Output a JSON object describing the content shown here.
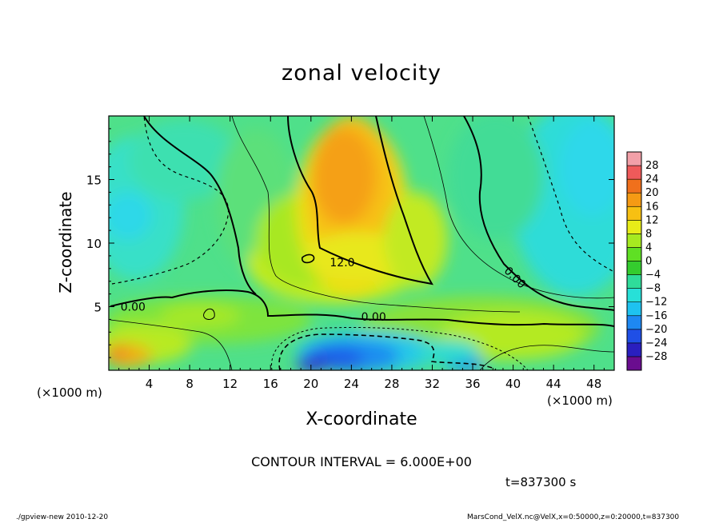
{
  "title": "zonal velocity",
  "xlabel": "X-coordinate",
  "ylabel": "Z-coordinate",
  "xunit_left": "(×1000 m)",
  "xunit_right": "(×1000 m)",
  "contour_interval": "CONTOUR INTERVAL = 6.000E+00",
  "time_label": "t=837300 s",
  "footer_left": "./gpview-new  2010-12-20",
  "footer_right": "MarsCond_VelX.nc@VelX,x=0:50000,z=0:20000,t=837300",
  "chart_data": {
    "type": "heatmap",
    "title": "zonal velocity",
    "xlabel": "X-coordinate",
    "ylabel": "Z-coordinate",
    "xlim": [
      0,
      50
    ],
    "ylim": [
      0,
      20
    ],
    "x_ticks": [
      4,
      8,
      12,
      16,
      20,
      24,
      28,
      32,
      36,
      40,
      44,
      48
    ],
    "y_ticks": [
      5,
      10,
      15
    ],
    "colorbar": {
      "levels": [
        -32,
        -28,
        -24,
        -20,
        -16,
        -12,
        -8,
        -4,
        0,
        4,
        8,
        12,
        16,
        20,
        24,
        28,
        32
      ],
      "labels": [
        "28",
        "24",
        "20",
        "16",
        "12",
        "8",
        "4",
        "0",
        "−4",
        "−8",
        "−12",
        "−16",
        "−20",
        "−24",
        "−28"
      ],
      "colors": [
        "#6a0d8f",
        "#2a1fbf",
        "#1f4fe6",
        "#1e88f2",
        "#1ec2f0",
        "#27e0d8",
        "#2fdc9a",
        "#34cc2e",
        "#5fe024",
        "#a6ea20",
        "#e8ec18",
        "#f7c012",
        "#f59a14",
        "#f0701c",
        "#ef5a5a",
        "#f2a0a8"
      ]
    },
    "contour_labels": [
      {
        "text": "0.00",
        "x": 2.4,
        "z": 5.0
      },
      {
        "text": "12.0",
        "x": 23.1,
        "z": 8.5
      },
      {
        "text": "0.00",
        "x": 26.2,
        "z": 4.2
      },
      {
        "text": "0.00",
        "x": 40.2,
        "z": 7.3
      }
    ]
  }
}
